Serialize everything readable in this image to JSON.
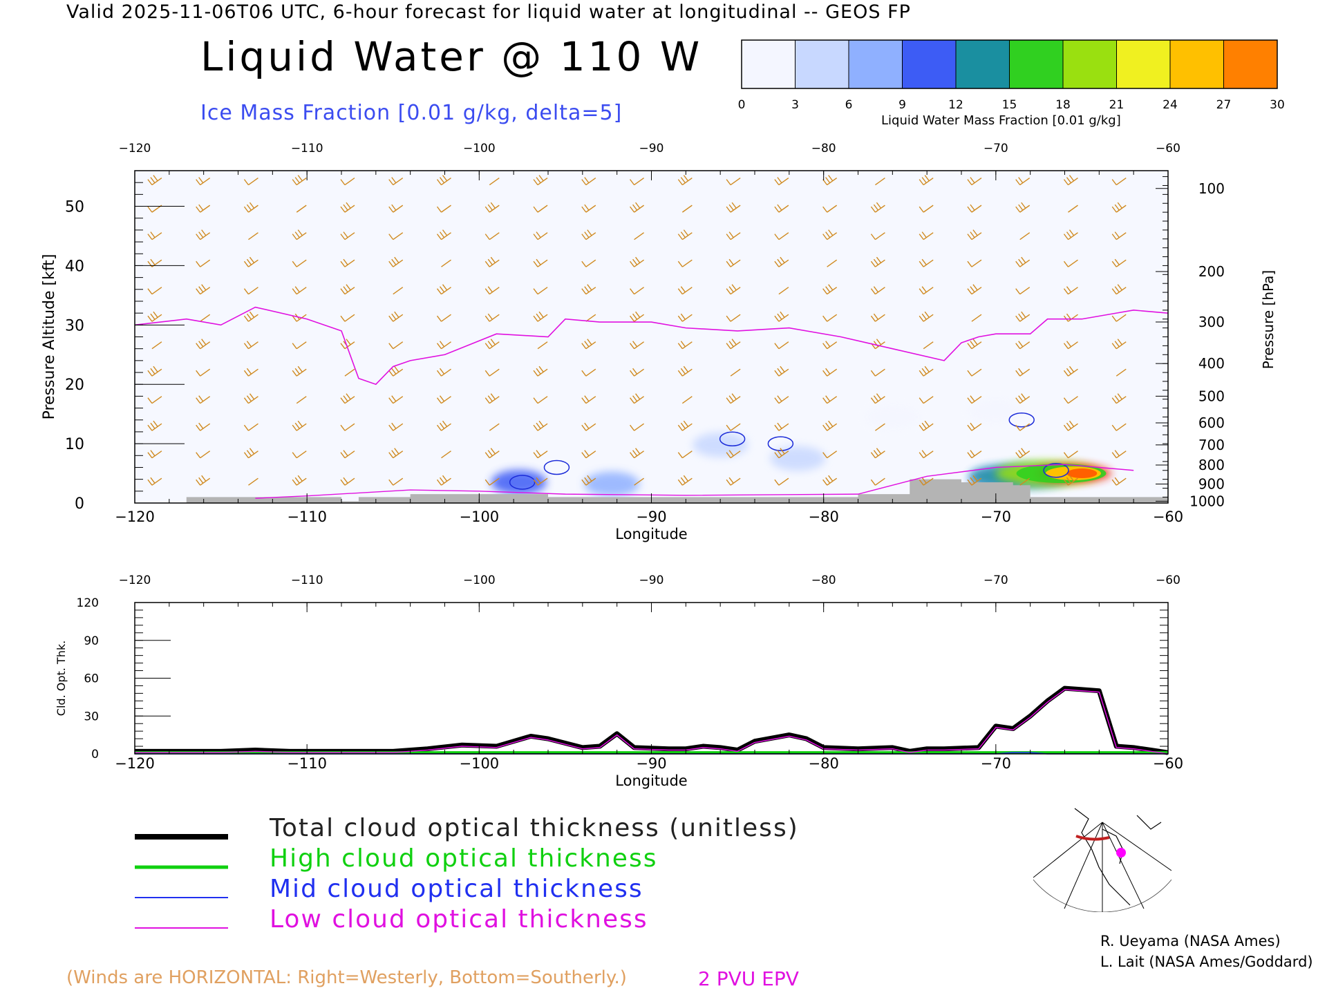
{
  "header": {
    "valid_line": "Valid 2025-11-06T06 UTC, 6-hour forecast for liquid water at longitudinal -- GEOS FP",
    "title": "Liquid Water @ 110 W",
    "ice_label": "Ice Mass Fraction [0.01 g/kg, delta=5]"
  },
  "colorbar": {
    "ticks": [
      "0",
      "3",
      "6",
      "9",
      "12",
      "15",
      "18",
      "21",
      "24",
      "27",
      "30"
    ],
    "caption": "Liquid Water Mass Fraction [0.01 g/kg]",
    "colors": [
      "#f4f6ff",
      "#c8d8ff",
      "#8fb0ff",
      "#3d5cf5",
      "#1a8fa0",
      "#30d020",
      "#9ae010",
      "#f0f020",
      "#ffc000",
      "#ff8000",
      "#f02000"
    ]
  },
  "legend": {
    "total": "Total cloud optical thickness (unitless)",
    "high": "High cloud optical thickness",
    "mid": "Mid cloud optical thickness",
    "low": "Low cloud optical thickness",
    "colors": {
      "total": "#000000",
      "high": "#10d010",
      "mid": "#2030f0",
      "low": "#e010e0"
    }
  },
  "notes": {
    "winds": "(Winds are HORIZONTAL: Right=Westerly, Bottom=Southerly.)",
    "pvu": "2 PVU EPV"
  },
  "credits": {
    "line1": "R. Ueyama (NASA Ames)",
    "line2": "L. Lait (NASA Ames/Goddard)"
  },
  "chart_data": [
    {
      "type": "heatmap",
      "title": "Liquid Water @ 110 W",
      "xlabel": "Longitude",
      "ylabel": "Pressure Altitude [kft]",
      "y2label": "Pressure [hPa]",
      "xlim": [
        -120,
        -60
      ],
      "ylim": [
        0,
        56
      ],
      "x_ticks": [
        "-120",
        "-110",
        "-100",
        "-90",
        "-80",
        "-70",
        "-60"
      ],
      "y_ticks": [
        "0",
        "10",
        "20",
        "30",
        "40",
        "50"
      ],
      "y2_ticks": [
        "100",
        "200",
        "300",
        "400",
        "500",
        "600",
        "700",
        "800",
        "900",
        "1000"
      ],
      "pvu_line": {
        "x": [
          -120,
          -117,
          -115,
          -113,
          -110,
          -108,
          -107,
          -106,
          -105,
          -104,
          -102,
          -99,
          -96,
          -95,
          -93,
          -90,
          -88,
          -85,
          -82,
          -79,
          -76,
          -73,
          -72,
          -71,
          -70,
          -68,
          -67,
          -65,
          -63,
          -62,
          -60
        ],
        "y": [
          30,
          31,
          30,
          33,
          31,
          29,
          21,
          20,
          23,
          24,
          25,
          28.5,
          28,
          31,
          30.5,
          30.5,
          29.5,
          29,
          29.5,
          28,
          26,
          24,
          27,
          28,
          28.5,
          28.5,
          31,
          31,
          32,
          32.5,
          32
        ]
      },
      "liquid_water": [
        {
          "lon": -65.5,
          "alt": 5,
          "value": 30
        },
        {
          "lon": -67,
          "alt": 5,
          "value": 18
        },
        {
          "lon": -68.5,
          "alt": 4.5,
          "value": 12
        },
        {
          "lon": -70,
          "alt": 4,
          "value": 8
        },
        {
          "lon": -97.7,
          "alt": 3.5,
          "value": 9
        },
        {
          "lon": -92.3,
          "alt": 3.2,
          "value": 6
        },
        {
          "lon": -86,
          "alt": 9.8,
          "value": 3
        },
        {
          "lon": -81.5,
          "alt": 7.5,
          "value": 3
        },
        {
          "lon": -76,
          "alt": 14.5,
          "value": 2
        },
        {
          "lon": -70,
          "alt": 15.5,
          "value": 2
        }
      ],
      "ice_contours": [
        {
          "lon": -97.5,
          "alt": 3.5
        },
        {
          "lon": -95.5,
          "alt": 6
        },
        {
          "lon": -85.3,
          "alt": 10.8
        },
        {
          "lon": -82.5,
          "alt": 10
        },
        {
          "lon": -68.5,
          "alt": 14
        },
        {
          "lon": -66.5,
          "alt": 5.5
        }
      ]
    },
    {
      "type": "line",
      "xlabel": "Longitude",
      "ylabel": "Cld. Opt. Thk.",
      "xlim": [
        -120,
        -60
      ],
      "ylim": [
        0,
        120
      ],
      "x_ticks": [
        "-120",
        "-110",
        "-100",
        "-90",
        "-80",
        "-70",
        "-60"
      ],
      "y_ticks": [
        "0",
        "30",
        "60",
        "90",
        "120"
      ],
      "x": [
        -120,
        -115,
        -113,
        -111,
        -105,
        -103,
        -101,
        -99,
        -97,
        -96,
        -94,
        -93,
        -92,
        -91,
        -89,
        -88,
        -87,
        -86,
        -85,
        -84,
        -82,
        -81,
        -80,
        -78,
        -76,
        -75,
        -74,
        -73,
        -71,
        -70,
        -69,
        -68,
        -67,
        -66,
        -65,
        -64,
        -63,
        -62,
        -61,
        -60
      ],
      "series": [
        {
          "name": "Total cloud optical thickness (unitless)",
          "values": [
            2,
            2,
            3,
            2,
            2,
            4,
            7,
            6,
            14,
            12,
            5,
            6,
            16,
            5,
            4,
            4,
            6,
            5,
            3,
            10,
            15,
            12,
            5,
            4,
            5,
            2,
            4,
            4,
            5,
            22,
            20,
            30,
            42,
            52,
            51,
            50,
            6,
            5,
            3,
            1
          ]
        },
        {
          "name": "High cloud optical thickness",
          "values": [
            1,
            1,
            1,
            1,
            1,
            1,
            1,
            1,
            1,
            1,
            1,
            1,
            1,
            1,
            1,
            1,
            1,
            1,
            1,
            1,
            1,
            1,
            1,
            1,
            1,
            1,
            1,
            1,
            1,
            1,
            1,
            1,
            1,
            1,
            1,
            1,
            1,
            1,
            1,
            1
          ]
        },
        {
          "name": "Mid cloud optical thickness",
          "values": [
            0,
            0,
            0,
            0,
            0,
            0,
            0,
            0,
            0,
            0,
            0,
            0,
            0,
            0,
            0,
            0,
            0,
            0,
            0,
            0,
            0,
            0,
            0,
            0,
            0,
            0,
            0,
            0,
            0,
            0,
            1,
            1,
            0,
            0,
            0,
            0,
            0,
            0,
            0,
            0
          ]
        },
        {
          "name": "Low cloud optical thickness",
          "values": [
            1,
            1,
            2,
            1,
            1,
            3,
            6,
            5,
            13,
            11,
            4,
            5,
            15,
            4,
            3,
            3,
            5,
            4,
            2,
            9,
            14,
            11,
            4,
            3,
            4,
            1,
            3,
            3,
            4,
            21,
            19,
            29,
            41,
            51,
            50,
            49,
            5,
            4,
            2,
            0
          ]
        }
      ]
    }
  ]
}
